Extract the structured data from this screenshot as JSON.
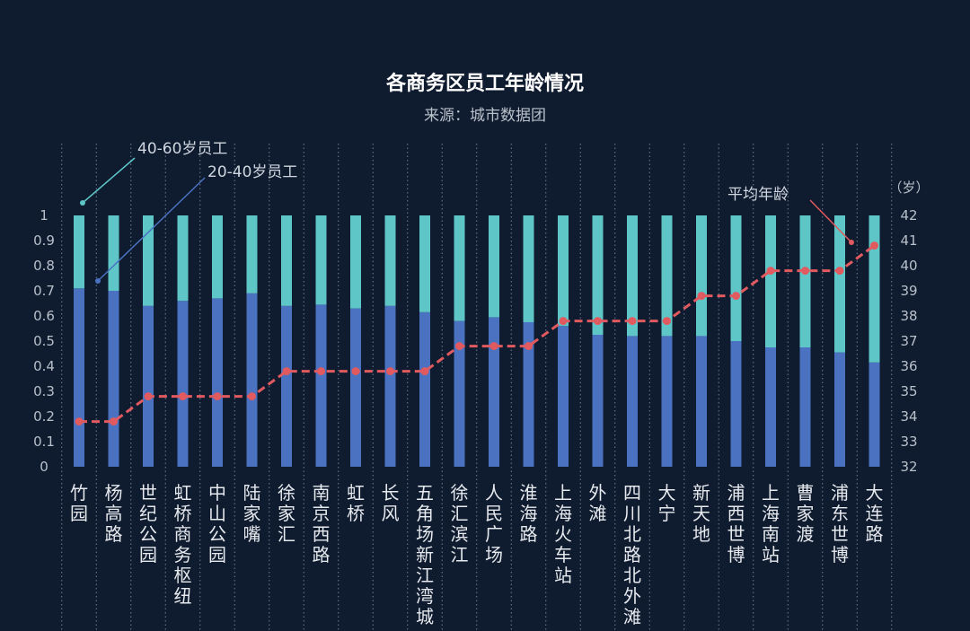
{
  "chart_data": {
    "type": "bar",
    "title": "各商务区员工年龄情况",
    "subtitle": "来源：城市数据团",
    "categories": [
      "竹园",
      "杨高路",
      "世纪公园",
      "虹桥商务枢纽",
      "中山公园",
      "陆家嘴",
      "徐家汇",
      "南京西路",
      "虹桥",
      "长风",
      "五角场新江湾城",
      "徐汇滨江",
      "人民广场",
      "淮海路",
      "上海火车站",
      "外滩",
      "四川北路北外滩",
      "大宁",
      "新天地",
      "浦西世博",
      "上海南站",
      "曹家渡",
      "浦东世博",
      "大连路"
    ],
    "series": [
      {
        "name": "20-40岁员工",
        "values": [
          0.71,
          0.7,
          0.64,
          0.66,
          0.67,
          0.69,
          0.64,
          0.645,
          0.63,
          0.64,
          0.615,
          0.58,
          0.595,
          0.575,
          0.56,
          0.525,
          0.52,
          0.52,
          0.52,
          0.5,
          0.475,
          0.475,
          0.455,
          0.415
        ],
        "color": "#4a72c0",
        "axis": "left"
      },
      {
        "name": "40-60岁员工",
        "values": [
          0.29,
          0.3,
          0.36,
          0.34,
          0.33,
          0.31,
          0.36,
          0.355,
          0.37,
          0.36,
          0.385,
          0.42,
          0.405,
          0.425,
          0.44,
          0.475,
          0.48,
          0.48,
          0.48,
          0.5,
          0.525,
          0.525,
          0.545,
          0.585
        ],
        "color": "#5fc6c8",
        "axis": "left"
      },
      {
        "name": "平均年龄",
        "type": "line",
        "values": [
          33.8,
          33.8,
          34.8,
          34.8,
          34.8,
          34.8,
          35.8,
          35.8,
          35.8,
          35.8,
          35.8,
          36.8,
          36.8,
          36.8,
          37.8,
          37.8,
          37.8,
          37.8,
          38.8,
          38.8,
          39.8,
          39.8,
          39.8,
          40.8
        ],
        "color": "#e05a5f",
        "axis": "right"
      }
    ],
    "y_left": {
      "ylim": [
        0,
        1
      ],
      "ticks": [
        "0",
        "0.1",
        "0.2",
        "0.3",
        "0.4",
        "0.5",
        "0.6",
        "0.7",
        "0.8",
        "0.9",
        "1"
      ]
    },
    "y_right": {
      "ylim": [
        32,
        42
      ],
      "unit": "（岁）",
      "ticks": [
        "32",
        "33",
        "34",
        "35",
        "36",
        "37",
        "38",
        "39",
        "40",
        "41",
        "42"
      ]
    },
    "annotations": [
      "40-60岁员工",
      "20-40岁员工",
      "平均年龄"
    ],
    "colors": {
      "background": "#0f1b2e",
      "grid": "#6f7f94",
      "leader_teal": "#5fc6c8",
      "leader_blue": "#4a72c0",
      "leader_red": "#e05a5f"
    }
  }
}
